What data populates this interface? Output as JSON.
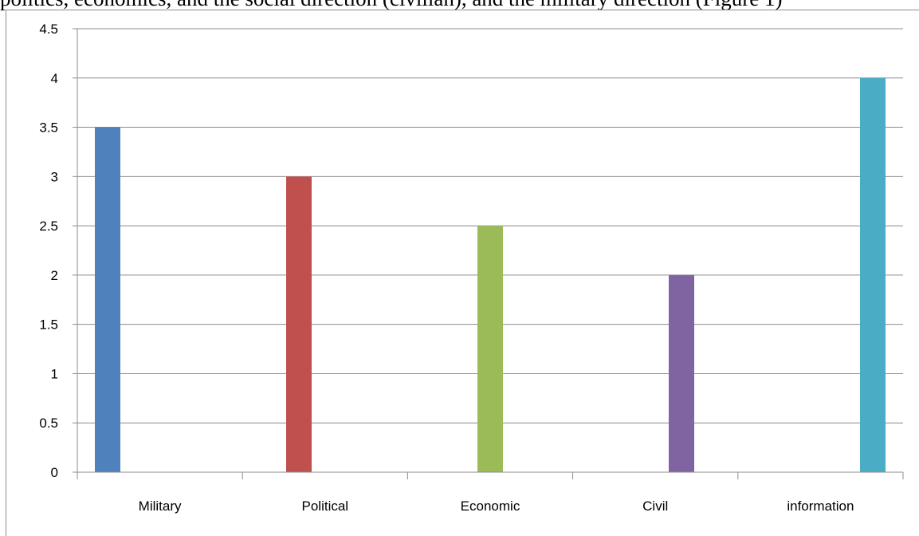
{
  "page": {
    "top_text": "politics, economics, and the social direction (civilian), and the military direction (Figure 1)"
  },
  "chart_data": {
    "type": "bar",
    "categories": [
      "Military",
      "Political",
      "Economic",
      "Civil",
      "information"
    ],
    "values": [
      3.5,
      3,
      2.5,
      2,
      4
    ],
    "colors": [
      "#4f81bd",
      "#c0504d",
      "#9bbb59",
      "#8064a2",
      "#4bacc6"
    ],
    "title": "",
    "xlabel": "",
    "ylabel": "",
    "ylim": [
      0,
      4.5
    ],
    "yticks": [
      "0",
      "0.5",
      "1",
      "1.5",
      "2",
      "2.5",
      "3",
      "3.5",
      "4",
      "4.5"
    ],
    "grid": true,
    "legend": "none"
  }
}
